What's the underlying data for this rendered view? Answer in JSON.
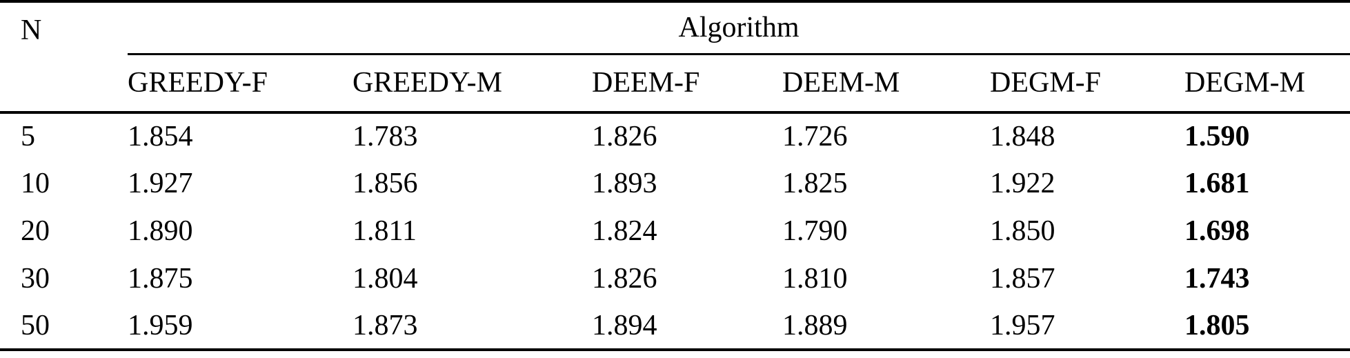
{
  "table": {
    "corner_header": "N",
    "group_header": "Algorithm",
    "columns": [
      "GREEDY-F",
      "GREEDY-M",
      "DEEM-F",
      "DEEM-M",
      "DEGM-F",
      "DEGM-M"
    ],
    "rows": [
      {
        "n": "5",
        "values": [
          "1.854",
          "1.783",
          "1.826",
          "1.726",
          "1.848",
          "1.590"
        ]
      },
      {
        "n": "10",
        "values": [
          "1.927",
          "1.856",
          "1.893",
          "1.825",
          "1.922",
          "1.681"
        ]
      },
      {
        "n": "20",
        "values": [
          "1.890",
          "1.811",
          "1.824",
          "1.790",
          "1.850",
          "1.698"
        ]
      },
      {
        "n": "30",
        "values": [
          "1.875",
          "1.804",
          "1.826",
          "1.810",
          "1.857",
          "1.743"
        ]
      },
      {
        "n": "50",
        "values": [
          "1.959",
          "1.873",
          "1.894",
          "1.889",
          "1.957",
          "1.805"
        ]
      }
    ],
    "bold_column": "DEGM-M",
    "text_color": "#000000",
    "background_color": "#ffffff"
  },
  "chart_data": {
    "type": "table",
    "title": "",
    "row_label": "N",
    "group_label": "Algorithm",
    "columns": [
      "N",
      "GREEDY-F",
      "GREEDY-M",
      "DEEM-F",
      "DEEM-M",
      "DEGM-F",
      "DEGM-M"
    ],
    "rows": [
      [
        5,
        1.854,
        1.783,
        1.826,
        1.726,
        1.848,
        1.59
      ],
      [
        10,
        1.927,
        1.856,
        1.893,
        1.825,
        1.922,
        1.681
      ],
      [
        20,
        1.89,
        1.811,
        1.824,
        1.79,
        1.85,
        1.698
      ],
      [
        30,
        1.875,
        1.804,
        1.826,
        1.81,
        1.857,
        1.743
      ],
      [
        50,
        1.959,
        1.873,
        1.894,
        1.889,
        1.957,
        1.805
      ]
    ],
    "notes": "Last column (DEGM-M) values rendered in bold"
  }
}
